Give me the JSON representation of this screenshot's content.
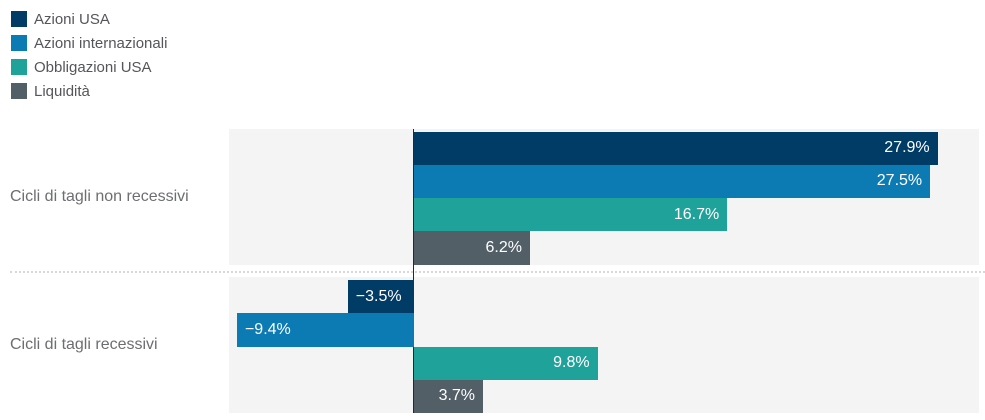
{
  "chart_data": {
    "type": "bar",
    "orientation": "horizontal",
    "title": "",
    "categories": [
      "Cicli di tagli non recessivi",
      "Cicli di tagli recessivi"
    ],
    "series": [
      {
        "name": "Azioni USA",
        "color": "#003c65",
        "values": [
          27.9,
          -3.5
        ]
      },
      {
        "name": "Azioni internazionali",
        "color": "#0d7bb3",
        "values": [
          27.5,
          -9.4
        ]
      },
      {
        "name": "Obbligazioni USA",
        "color": "#1ea29a",
        "values": [
          16.7,
          9.8
        ]
      },
      {
        "name": "Liquidità",
        "color": "#525f67",
        "values": [
          6.2,
          3.7
        ]
      }
    ],
    "value_labels": [
      [
        "27.9%",
        "27.5%",
        "16.7%",
        "6.2%"
      ],
      [
        "−3.5%",
        "−9.4%",
        "9.8%",
        "3.7%"
      ]
    ],
    "xlim": [
      -9.85,
      30.1
    ],
    "grid": false,
    "legend_position": "top-left",
    "colors": {
      "plot_background": "#f4f4f4",
      "zero_line": "#26282a",
      "separator": "#d8d8d8",
      "value_label_text": "#ffffff",
      "category_label_text": "#6d6e71",
      "legend_text": "#55565a"
    }
  }
}
